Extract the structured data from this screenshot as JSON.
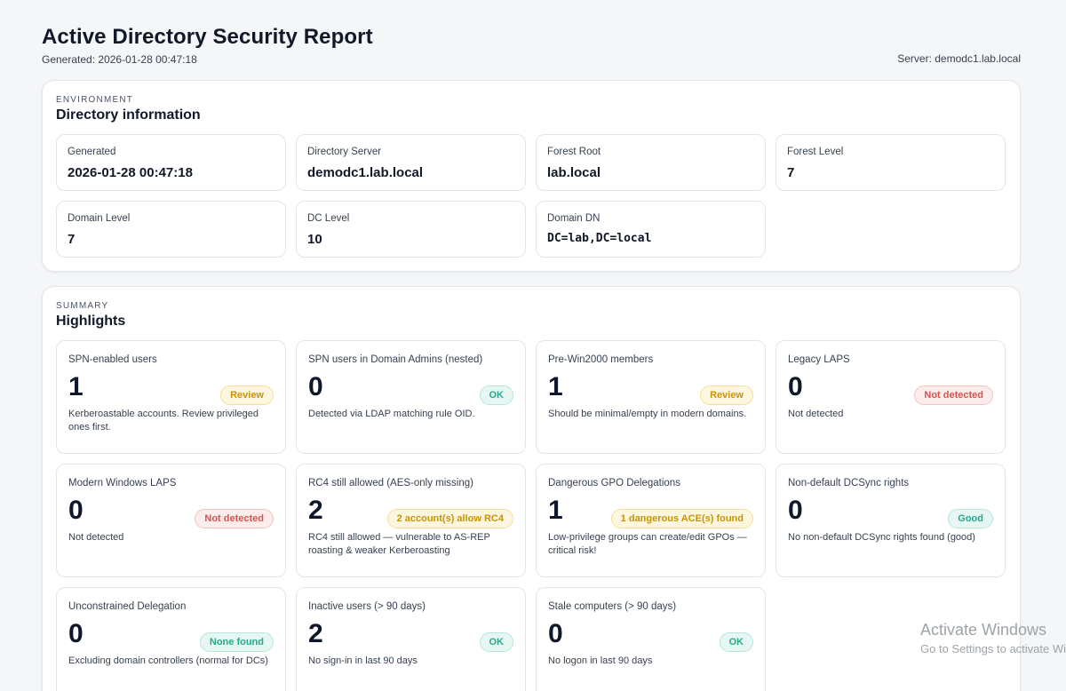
{
  "report": {
    "title": "Active Directory Security Report",
    "generated": "Generated: 2026-01-28 00:47:18",
    "server": "Server: demodc1.lab.local"
  },
  "environment": {
    "eyebrow": "ENVIRONMENT",
    "title": "Directory information",
    "items": [
      {
        "label": "Generated",
        "value": "2026-01-28 00:47:18"
      },
      {
        "label": "Directory Server",
        "value": "demodc1.lab.local"
      },
      {
        "label": "Forest Root",
        "value": "lab.local"
      },
      {
        "label": "Forest Level",
        "value": "7"
      },
      {
        "label": "Domain Level",
        "value": "7"
      },
      {
        "label": "DC Level",
        "value": "10"
      },
      {
        "label": "Domain DN",
        "value": "DC=lab,DC=local"
      }
    ]
  },
  "summary": {
    "eyebrow": "SUMMARY",
    "title": "Highlights",
    "cards": [
      {
        "label": "SPN-enabled users",
        "value": "1",
        "badge": "Review",
        "status": "review",
        "desc": "Kerberoastable accounts. Review privileged ones first."
      },
      {
        "label": "SPN users in Domain Admins (nested)",
        "value": "0",
        "badge": "OK",
        "status": "ok",
        "desc": "Detected via LDAP matching rule OID."
      },
      {
        "label": "Pre-Win2000 members",
        "value": "1",
        "badge": "Review",
        "status": "review",
        "desc": "Should be minimal/empty in modern domains."
      },
      {
        "label": "Legacy LAPS",
        "value": "0",
        "badge": "Not detected",
        "status": "bad",
        "desc": "Not detected"
      },
      {
        "label": "Modern Windows LAPS",
        "value": "0",
        "badge": "Not detected",
        "status": "bad",
        "desc": "Not detected"
      },
      {
        "label": "RC4 still allowed (AES-only missing)",
        "value": "2",
        "badge": "2 account(s) allow RC4",
        "status": "review",
        "desc": "RC4 still allowed — vulnerable to AS-REP roasting & weaker Kerberoasting"
      },
      {
        "label": "Dangerous GPO Delegations",
        "value": "1",
        "badge": "1 dangerous ACE(s) found",
        "status": "review",
        "desc": "Low-privilege groups can create/edit GPOs — critical risk!"
      },
      {
        "label": "Non-default DCSync rights",
        "value": "0",
        "badge": "Good",
        "status": "ok",
        "desc": "No non-default DCSync rights found (good)"
      },
      {
        "label": "Unconstrained Delegation",
        "value": "0",
        "badge": "None found",
        "status": "ok",
        "desc": "Excluding domain controllers (normal for DCs)"
      },
      {
        "label": "Inactive users (> 90 days)",
        "value": "2",
        "badge": "OK",
        "status": "ok",
        "desc": "No sign-in in last 90 days"
      },
      {
        "label": "Stale computers (> 90 days)",
        "value": "0",
        "badge": "OK",
        "status": "ok",
        "desc": "No logon in last 90 days"
      }
    ]
  },
  "watermark": {
    "title": "Activate Windows",
    "subtitle": "Go to Settings to activate Windows."
  }
}
